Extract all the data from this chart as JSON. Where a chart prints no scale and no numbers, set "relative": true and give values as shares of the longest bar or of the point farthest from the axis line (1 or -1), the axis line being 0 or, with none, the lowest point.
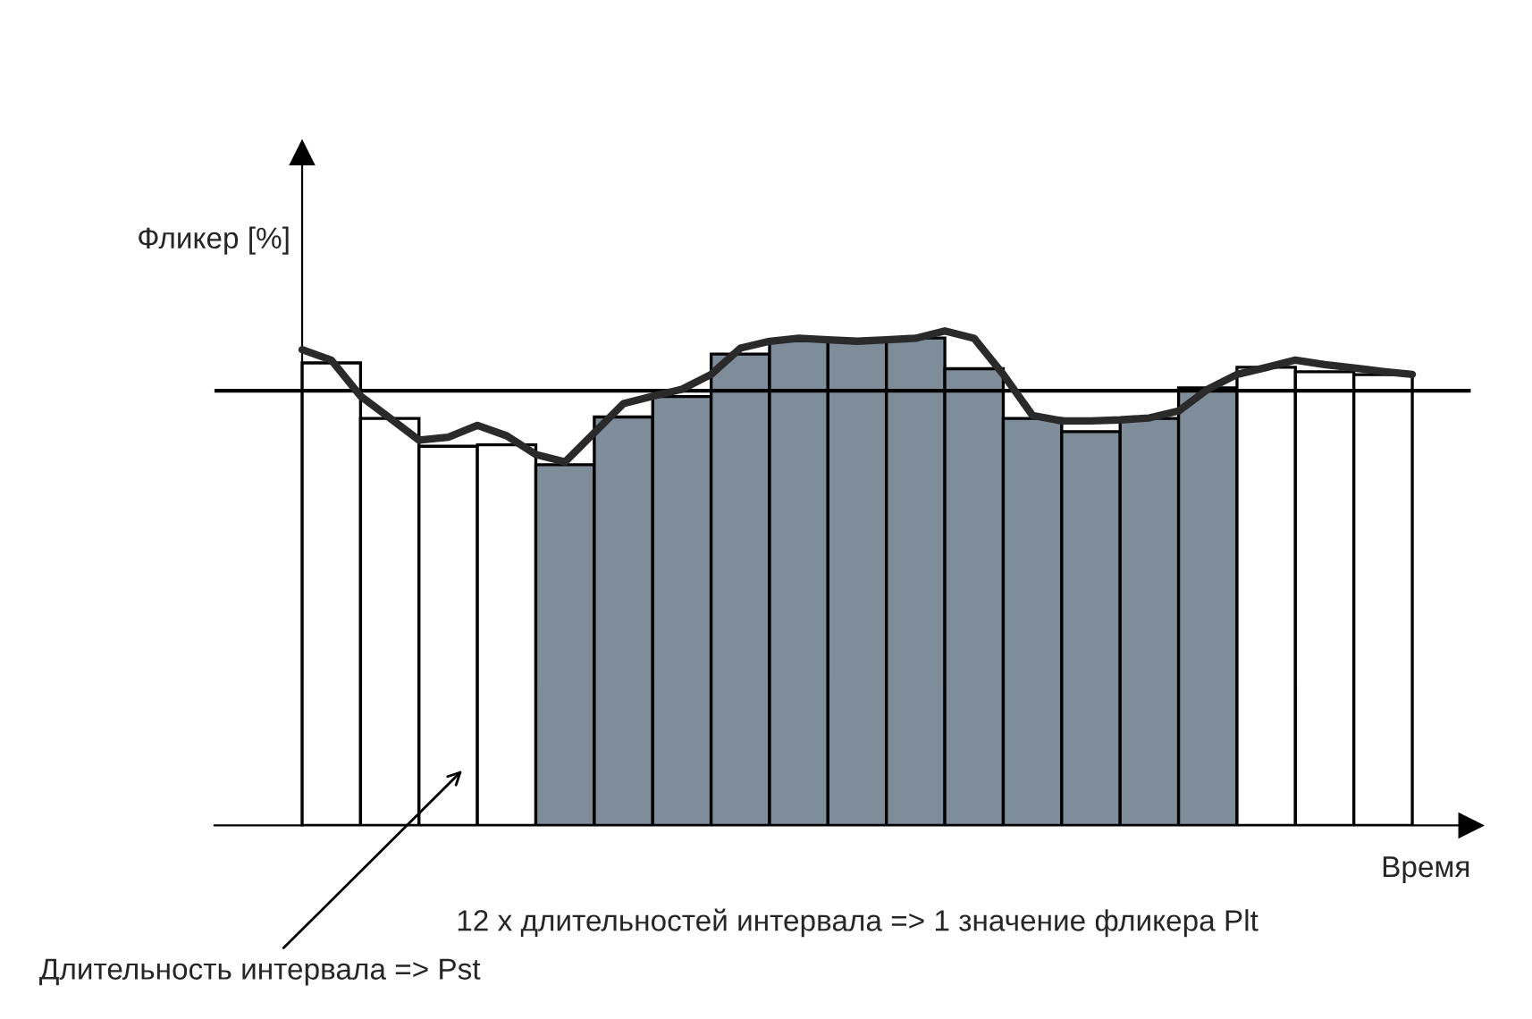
{
  "chart_data": [
    {
      "type": "bar",
      "relative": true,
      "ylabel": "Фликер [%]",
      "xlabel": "Время",
      "categories": [
        null,
        null,
        null,
        null,
        null,
        null,
        null,
        null,
        null,
        null,
        null,
        null,
        null,
        null,
        null,
        null,
        null,
        null,
        null
      ],
      "colors": [
        "#ffffff",
        "#ffffff",
        "#ffffff",
        "#ffffff",
        "#7f8c99",
        "#7f8c99",
        "#7f8c99",
        "#7f8c99",
        "#7f8c99",
        "#7f8c99",
        "#7f8c99",
        "#7f8c99",
        "#7f8c99",
        "#7f8c99",
        "#7f8c99",
        "#7f8c99",
        "#ffffff",
        "#ffffff",
        "#ffffff"
      ],
      "values": [
        0.949,
        0.835,
        0.778,
        0.781,
        0.74,
        0.838,
        0.88,
        0.967,
        0.994,
        0.994,
        1.0,
        0.937,
        0.835,
        0.808,
        0.835,
        0.898,
        0.94,
        0.931,
        0.925
      ],
      "ref_lines": [
        {
          "axis": "y",
          "value": 0.892,
          "color": "#000000"
        }
      ],
      "annotations": [
        "12 х длительностей интервала => 1 значение фликера Plt",
        "Длительность интервала => Pst"
      ]
    },
    {
      "type": "line",
      "relative": true,
      "color": "#2a2a2a",
      "categories": [
        null,
        null,
        null,
        null,
        null,
        null,
        null,
        null,
        null,
        null,
        null,
        null,
        null,
        null,
        null,
        null,
        null,
        null,
        null,
        null,
        null,
        null,
        null,
        null,
        null,
        null,
        null,
        null,
        null,
        null,
        null,
        null,
        null,
        null,
        null,
        null,
        null,
        null,
        null
      ],
      "values": [
        0.962,
        0.941,
        0.868,
        0.824,
        0.779,
        0.785,
        0.809,
        0.788,
        0.75,
        0.735,
        0.794,
        0.853,
        0.868,
        0.882,
        0.912,
        0.965,
        0.979,
        0.985,
        0.982,
        0.979,
        0.982,
        0.985,
        1.0,
        0.985,
        0.912,
        0.829,
        0.818,
        0.818,
        0.82,
        0.824,
        0.838,
        0.882,
        0.912,
        0.926,
        0.941,
        0.932,
        0.925,
        0.918,
        0.912
      ]
    }
  ]
}
